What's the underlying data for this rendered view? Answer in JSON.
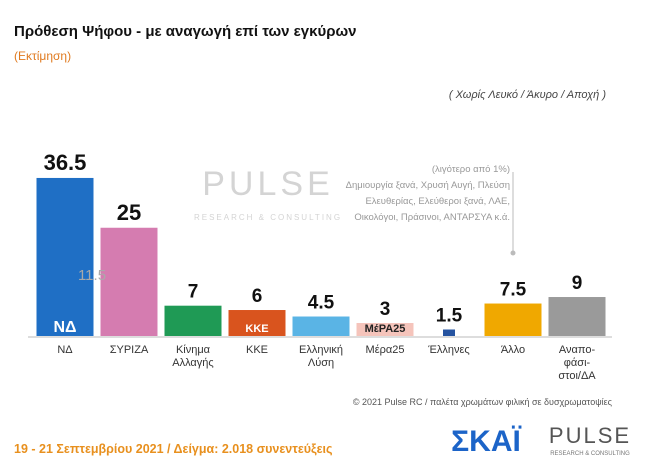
{
  "chart_data": {
    "type": "bar",
    "title": "Πρόθεση Ψήφου - με αναγωγή επί των εγκύρων",
    "subtitle": "(Εκτίμηση)",
    "note": "( Χωρίς Λευκό / Άκυρο / Αποχή )",
    "categories": [
      "ΝΔ",
      "ΣΥΡΙΖΑ",
      "Κίνημα\nΑλλαγής",
      "ΚΚΕ",
      "Ελληνική\nΛύση",
      "Μέρα25",
      "Έλληνες",
      "Άλλο",
      "Αναπο-\nφάσι-\nστοι/ΔΑ"
    ],
    "values": [
      36.5,
      25,
      7,
      6,
      4.5,
      3,
      1.5,
      7.5,
      9
    ],
    "colors": [
      "#1f6fc5",
      "#d57cb0",
      "#1f9a55",
      "#d9541e",
      "#5ab4e5",
      "#f5c4bb",
      "#2553a0",
      "#f0a800",
      "#9a9a9a"
    ],
    "bar_logos": [
      "ΝΔ",
      null,
      null,
      "ΚΚΕ",
      null,
      "ΜέΡΑ25",
      null,
      null,
      null
    ],
    "gap_annotation": "11.5",
    "other_note": [
      "(λιγότερο από 1%)",
      "Δημιουργία ξανά, Χρυσή Αυγή, Πλεύση",
      "Ελευθερίας, Ελεύθεροι ξανά, ΛΑΕ,",
      "Οικολόγοι, Πράσινοι, ΑΝΤΑΡΣΥΑ  κ.ά."
    ],
    "watermark": [
      "PULSE",
      "RESEARCH & CONSULTING"
    ],
    "copyright": "© 2021 Pulse RC   /   παλέτα χρωμάτων φιλική σε δυσχρωματοψίες",
    "footer": "19 - 21 Σεπτεμβρίου 2021  /  Δείγμα:  2.018 συνεντεύξεις",
    "logos": [
      "ΣΚΑΪ",
      "PULSE",
      "RESEARCH & CONSULTING"
    ]
  }
}
